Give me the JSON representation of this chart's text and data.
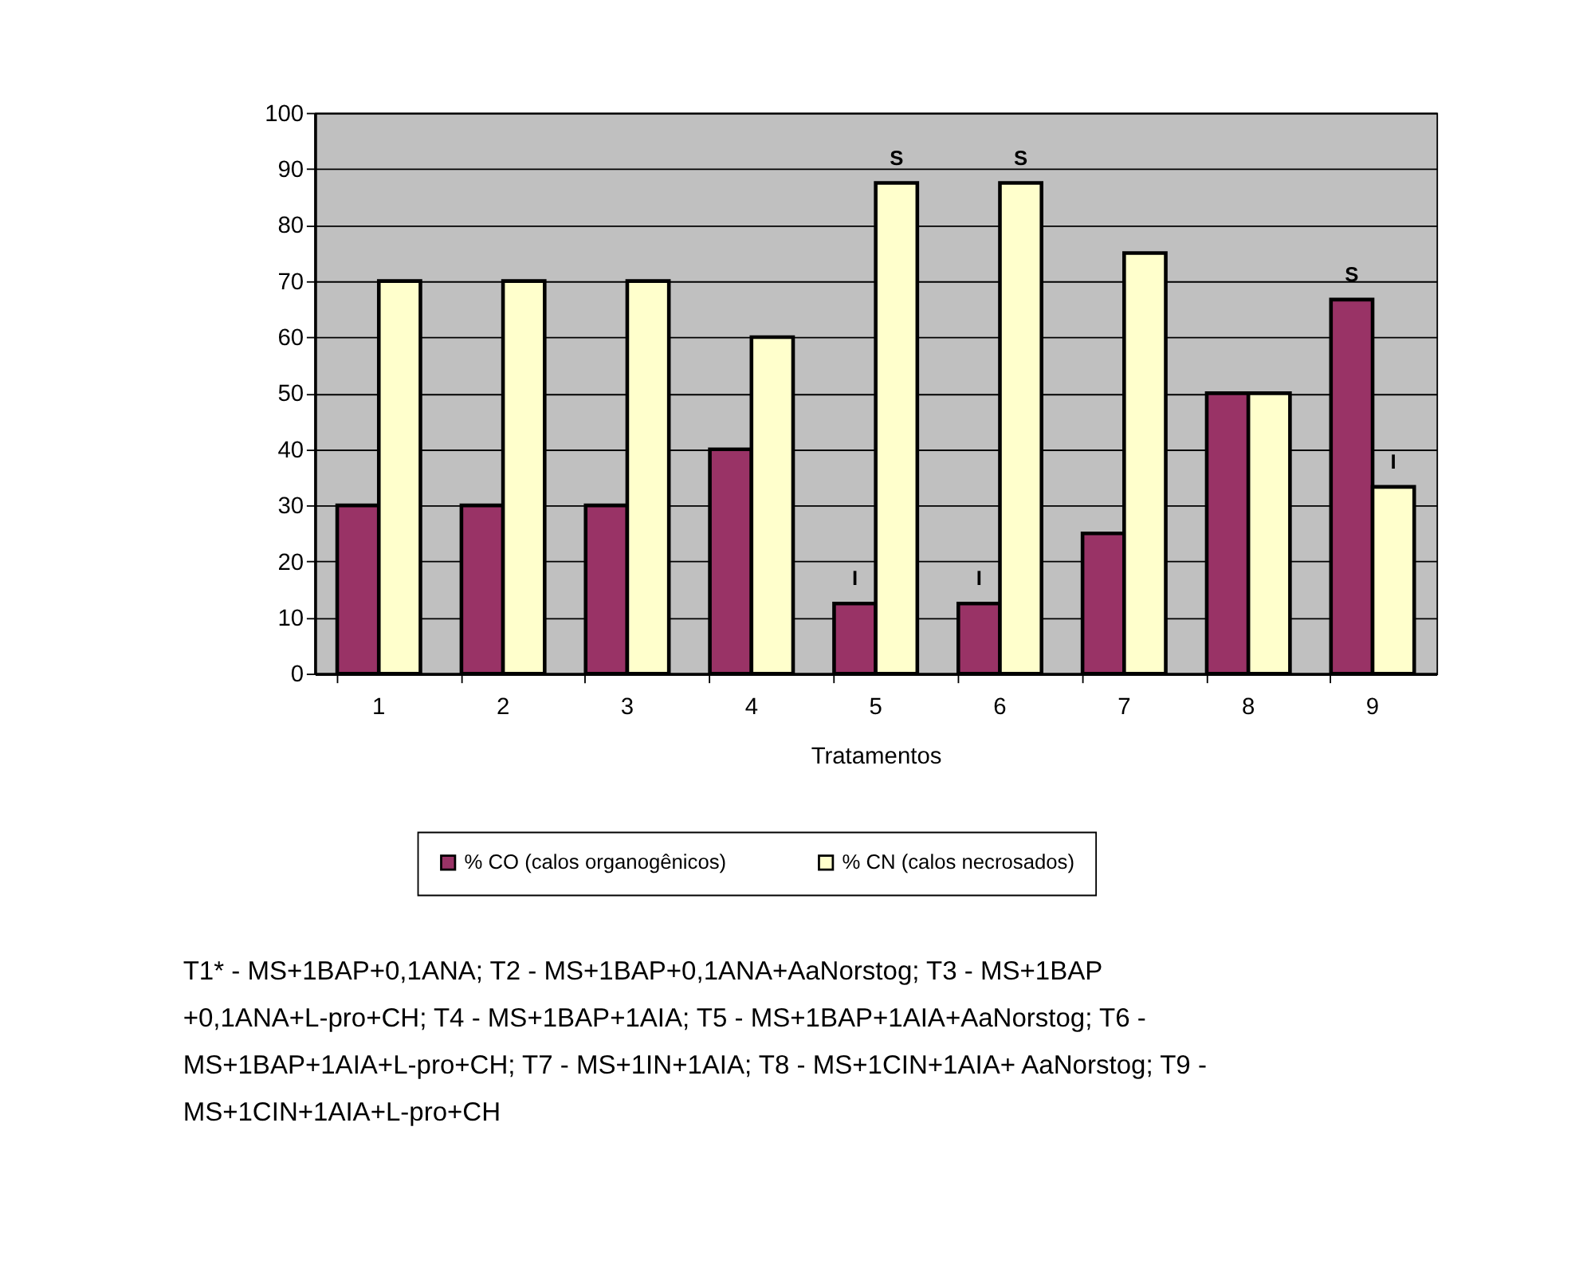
{
  "chart_data": {
    "type": "bar",
    "xlabel": "Tratamentos",
    "categories": [
      "1",
      "2",
      "3",
      "4",
      "5",
      "6",
      "7",
      "8",
      "9"
    ],
    "series": [
      {
        "name": "% CO (calos organogênicos)",
        "color": "#993366",
        "values": [
          30,
          30,
          30,
          40,
          12.5,
          12.5,
          25,
          50,
          66.7
        ]
      },
      {
        "name": "% CN (calos necrosados)",
        "color": "#ffffcc",
        "values": [
          70,
          70,
          70,
          60,
          87.5,
          87.5,
          75,
          50,
          33.3
        ]
      }
    ],
    "ylim": [
      0,
      100
    ],
    "yticks": [
      0,
      10,
      20,
      30,
      40,
      50,
      60,
      70,
      80,
      90,
      100
    ],
    "grid": "y",
    "legend": "bottom",
    "annotations": [
      {
        "text": "S",
        "x": "5",
        "y": 87.5
      },
      {
        "text": "S",
        "x": "6",
        "y": 87.5
      },
      {
        "text": "S",
        "x": "9",
        "y": 66.7
      },
      {
        "text": "I",
        "x": "5",
        "y": 12.5
      },
      {
        "text": "I",
        "x": "6",
        "y": 12.5
      },
      {
        "text": "I",
        "x": "9",
        "y": 33.3
      },
      "T1* - MS+1BAP+0,1ANA; T2 - MS+1BAP+0,1ANA+AaNorstog;  T3 - MS+1BAP +0,1ANA+L-pro+CH; T4 - MS+1BAP+1AIA; T5 - MS+1BAP+1AIA+AaNorstog; T6 - MS+1BAP+1AIA+L-pro+CH;  T7 - MS+1IN+1AIA; T8 - MS+1CIN+1AIA+ AaNorstog; T9 - MS+1CIN+1AIA+L-pro+CH"
    ]
  }
}
